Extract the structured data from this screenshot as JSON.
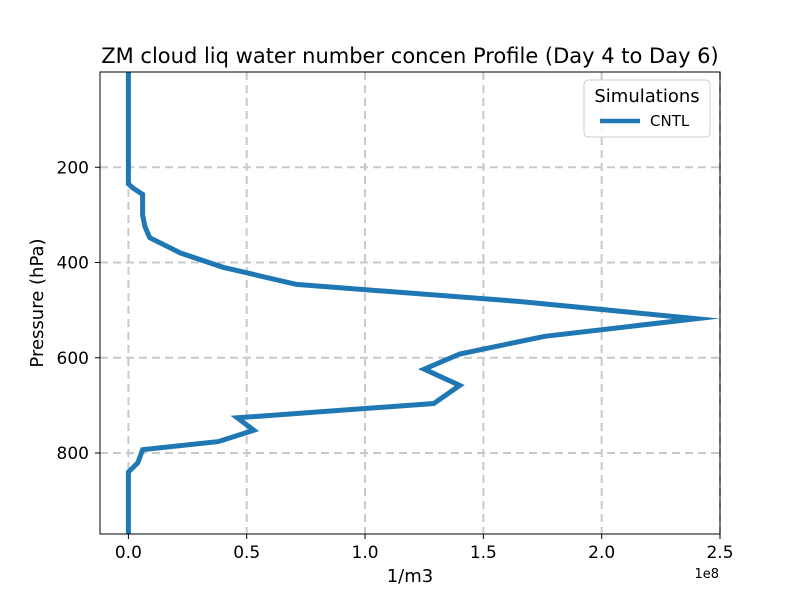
{
  "chart_data": {
    "type": "line",
    "title": "ZM cloud liq water number concen Profile (Day 4 to Day 6)",
    "xlabel": "1/m3",
    "ylabel": "Pressure (hPa)",
    "x_offset_label": "1e8",
    "xlim": [
      -0.12,
      2.5
    ],
    "ylim": [
      970,
      0
    ],
    "y_inverted": true,
    "x_ticks": [
      0.0,
      0.5,
      1.0,
      1.5,
      2.0,
      2.5
    ],
    "x_tick_labels": [
      "0.0",
      "0.5",
      "1.0",
      "1.5",
      "2.0",
      "2.5"
    ],
    "y_ticks": [
      200,
      400,
      600,
      800
    ],
    "y_tick_labels": [
      "200",
      "400",
      "600",
      "800"
    ],
    "grid": true,
    "legend": {
      "title": "Simulations",
      "placement": "top-right"
    },
    "series": [
      {
        "name": "CNTL",
        "color": "#1f77b4",
        "x_scale": 100000000,
        "x": [
          0.0,
          0.0,
          0.0,
          0.0,
          0.0,
          0.0,
          0.0,
          0.0,
          0.02,
          0.06,
          0.06,
          0.07,
          0.09,
          0.22,
          0.4,
          0.71,
          1.66,
          2.4,
          1.76,
          1.4,
          1.25,
          1.4,
          1.29,
          0.46,
          0.53,
          0.38,
          0.06,
          0.04,
          0.0,
          0.0,
          0.0,
          0.0
        ],
        "y": [
          0,
          50,
          100,
          150,
          200,
          212,
          225,
          235,
          244,
          257,
          300,
          325,
          348,
          380,
          410,
          446,
          482,
          518,
          555,
          592,
          624,
          658,
          696,
          726,
          752,
          776,
          793,
          820,
          840,
          870,
          920,
          970
        ]
      }
    ]
  }
}
